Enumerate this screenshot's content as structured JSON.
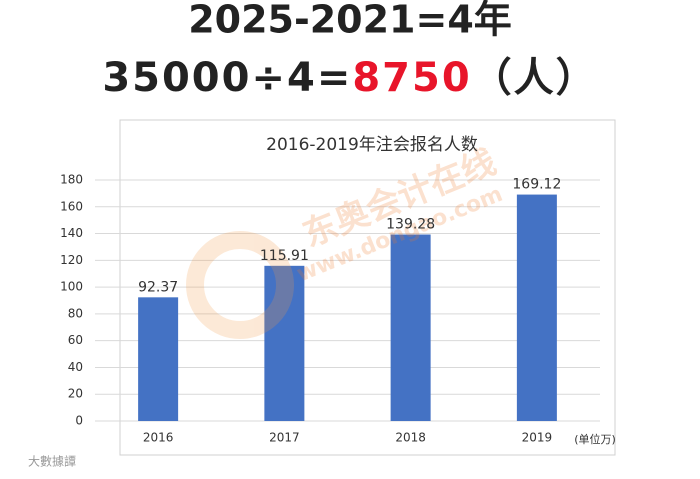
{
  "header": {
    "line1": "2025-2021=4年",
    "line2_prefix": "35000÷4=",
    "line2_highlight": "8750",
    "line2_suffix": "（人）"
  },
  "chart_data": {
    "type": "bar",
    "title": "2016-2019年注会报名人数",
    "categories": [
      "2016",
      "2017",
      "2018",
      "2019"
    ],
    "values": [
      92.37,
      115.91,
      139.28,
      169.12
    ],
    "color": "#4472c4",
    "ylim": [
      0,
      180
    ],
    "yticks": [
      0,
      20,
      40,
      60,
      80,
      100,
      120,
      140,
      160,
      180
    ],
    "grid": true,
    "unit_note": "(单位万)"
  },
  "watermark": {
    "brand": "东奥会计在线",
    "url": "www.dongao.com"
  },
  "footer_mark": "大數據譚"
}
